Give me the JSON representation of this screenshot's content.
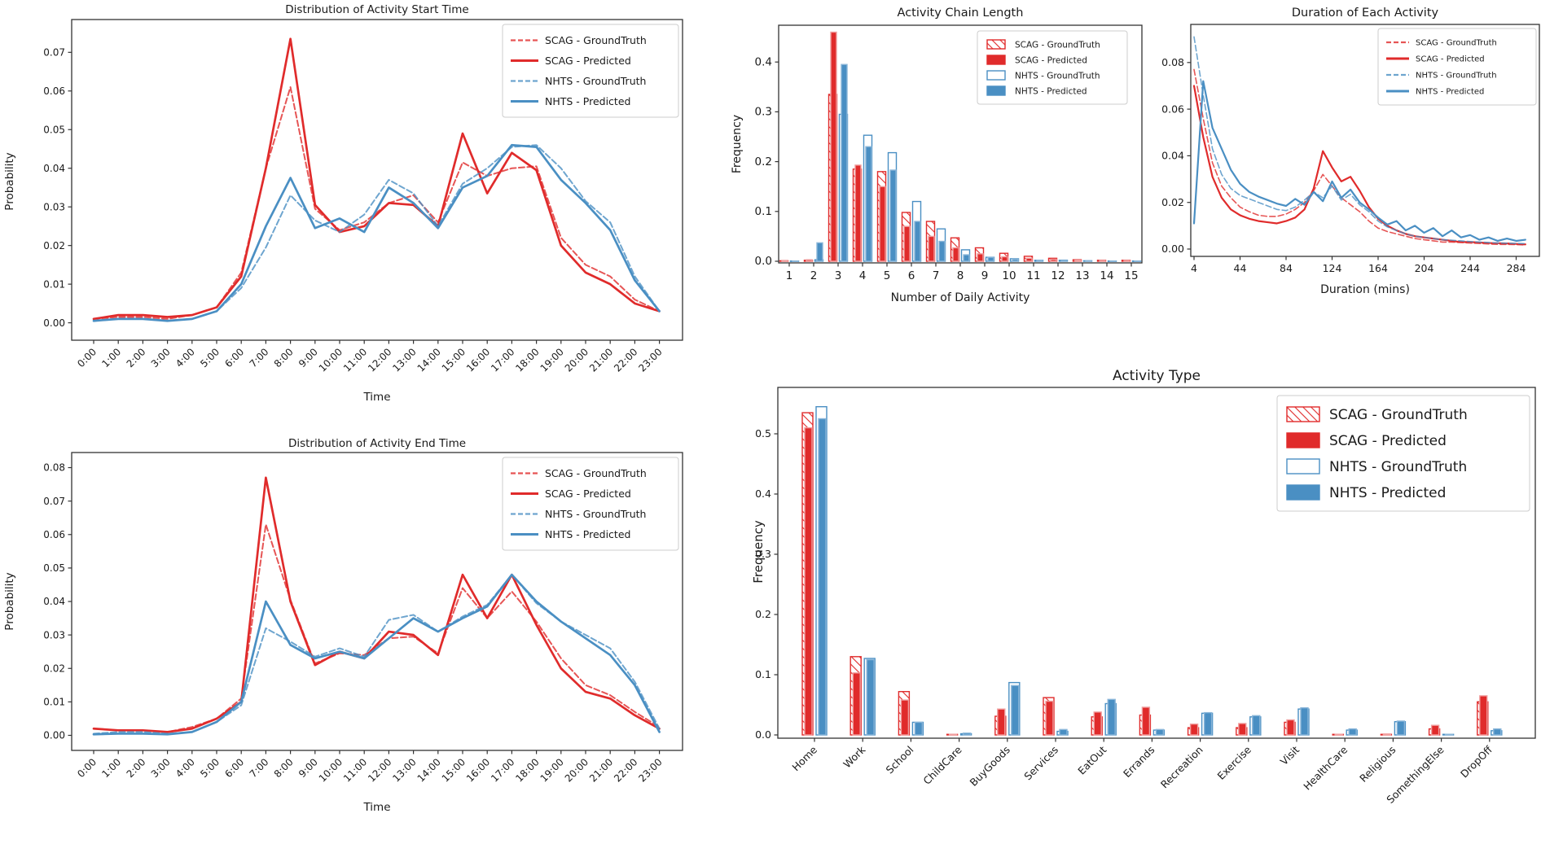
{
  "colors": {
    "red": "#e02b2b",
    "blue": "#4a8fc3",
    "bar_red_edge": "#f0a0a0",
    "bar_blue_edge": "#8ab6d9",
    "text": "#1a1a1a",
    "spine": "#333333"
  },
  "chart_data": [
    {
      "id": "activity_start_time",
      "type": "line",
      "title": "Distribution of Activity Start Time",
      "xlabel": "Time",
      "ylabel": "Probability",
      "legend_position": "upper right",
      "grid": false,
      "x_tick_labels": [
        "0:00",
        "1:00",
        "2:00",
        "3:00",
        "4:00",
        "5:00",
        "6:00",
        "7:00",
        "8:00",
        "9:00",
        "10:00",
        "11:00",
        "12:00",
        "13:00",
        "14:00",
        "15:00",
        "16:00",
        "17:00",
        "18:00",
        "19:00",
        "20:00",
        "21:00",
        "22:00",
        "23:00"
      ],
      "y_tick_values": [
        0,
        0.01,
        0.02,
        0.03,
        0.04,
        0.05,
        0.06,
        0.07
      ],
      "y_tick_labels": [
        "0.00",
        "0.01",
        "0.02",
        "0.03",
        "0.04",
        "0.05",
        "0.06",
        "0.07"
      ],
      "ylim": [
        -0.0045,
        0.0785
      ],
      "series": [
        {
          "name": "SCAG - GroundTruth",
          "color": "red",
          "style": "dashed",
          "values": [
            0.001,
            0.0015,
            0.0015,
            0.001,
            0.002,
            0.004,
            0.013,
            0.04,
            0.061,
            0.0295,
            0.024,
            0.026,
            0.031,
            0.033,
            0.026,
            0.0415,
            0.038,
            0.04,
            0.0405,
            0.022,
            0.015,
            0.012,
            0.006,
            0.003
          ]
        },
        {
          "name": "SCAG - Predicted",
          "color": "red",
          "style": "solid",
          "values": [
            0.001,
            0.002,
            0.002,
            0.0015,
            0.002,
            0.004,
            0.012,
            0.04,
            0.0735,
            0.0305,
            0.0235,
            0.025,
            0.031,
            0.0305,
            0.025,
            0.049,
            0.0335,
            0.044,
            0.0395,
            0.02,
            0.013,
            0.01,
            0.005,
            0.003
          ]
        },
        {
          "name": "NHTS - GroundTruth",
          "color": "blue",
          "style": "dashed",
          "values": [
            0.0005,
            0.001,
            0.001,
            0.0005,
            0.001,
            0.003,
            0.009,
            0.0195,
            0.033,
            0.0265,
            0.0235,
            0.028,
            0.037,
            0.0335,
            0.025,
            0.036,
            0.04,
            0.0455,
            0.046,
            0.04,
            0.0315,
            0.026,
            0.012,
            0.003
          ]
        },
        {
          "name": "NHTS - Predicted",
          "color": "blue",
          "style": "solid",
          "values": [
            0.0005,
            0.001,
            0.001,
            0.0005,
            0.001,
            0.003,
            0.01,
            0.025,
            0.0375,
            0.0245,
            0.027,
            0.0235,
            0.035,
            0.031,
            0.0245,
            0.035,
            0.038,
            0.046,
            0.0455,
            0.037,
            0.031,
            0.024,
            0.011,
            0.003
          ]
        }
      ]
    },
    {
      "id": "activity_chain_length",
      "type": "bar",
      "title": "Activity Chain Length",
      "xlabel": "Number of Daily Activity",
      "ylabel": "Frequency",
      "legend_position": "upper right",
      "grid": false,
      "categories": [
        "1",
        "2",
        "3",
        "4",
        "5",
        "6",
        "7",
        "8",
        "9",
        "10",
        "11",
        "12",
        "13",
        "14",
        "15"
      ],
      "y_tick_values": [
        0,
        0.1,
        0.2,
        0.3,
        0.4
      ],
      "y_tick_labels": [
        "0.0",
        "0.1",
        "0.2",
        "0.3",
        "0.4"
      ],
      "ylim": [
        0,
        0.475
      ],
      "series": [
        {
          "name": "SCAG - GroundTruth",
          "color": "red",
          "style": "hatched",
          "values": [
            0.001,
            0.002,
            0.335,
            0.185,
            0.18,
            0.098,
            0.08,
            0.047,
            0.027,
            0.016,
            0.01,
            0.006,
            0.003,
            0.002,
            0.002
          ]
        },
        {
          "name": "SCAG - Predicted",
          "color": "red",
          "style": "solid",
          "values": [
            0.0005,
            0.003,
            0.46,
            0.193,
            0.15,
            0.07,
            0.05,
            0.027,
            0.015,
            0.009,
            0.006,
            0.004,
            0.002,
            0.0015,
            0.0015
          ]
        },
        {
          "name": "NHTS - GroundTruth",
          "color": "blue",
          "style": "outline",
          "values": [
            0.0005,
            0.003,
            0.295,
            0.253,
            0.218,
            0.12,
            0.065,
            0.023,
            0.008,
            0.005,
            0.002,
            0.002,
            0.001,
            0.0005,
            0.0005
          ]
        },
        {
          "name": "NHTS - Predicted",
          "color": "blue",
          "style": "solid",
          "values": [
            0.0005,
            0.037,
            0.395,
            0.23,
            0.183,
            0.08,
            0.04,
            0.013,
            0.008,
            0.004,
            0.002,
            0.001,
            0.001,
            0.0005,
            0.0005
          ]
        }
      ]
    },
    {
      "id": "activity_duration",
      "type": "line",
      "title": "Duration of Each Activity",
      "xlabel": "Duration (mins)",
      "ylabel": "",
      "legend_position": "upper right",
      "grid": false,
      "x": [
        4,
        12,
        20,
        28,
        36,
        44,
        52,
        60,
        68,
        76,
        84,
        92,
        100,
        108,
        116,
        124,
        132,
        140,
        148,
        156,
        164,
        172,
        180,
        188,
        196,
        204,
        212,
        220,
        228,
        236,
        244,
        252,
        260,
        268,
        276,
        284,
        292
      ],
      "x_tick_values": [
        4,
        44,
        84,
        124,
        164,
        204,
        244,
        284
      ],
      "x_tick_labels": [
        "4",
        "44",
        "84",
        "124",
        "164",
        "204",
        "244",
        "284"
      ],
      "y_tick_values": [
        0,
        0.02,
        0.04,
        0.06,
        0.08
      ],
      "y_tick_labels": [
        "0.00",
        "0.02",
        "0.04",
        "0.06",
        "0.08"
      ],
      "ylim": [
        -0.003,
        0.096
      ],
      "series": [
        {
          "name": "SCAG - GroundTruth",
          "color": "red",
          "style": "dashed",
          "values": [
            0.077,
            0.056,
            0.037,
            0.027,
            0.022,
            0.018,
            0.016,
            0.0145,
            0.014,
            0.014,
            0.015,
            0.017,
            0.02,
            0.025,
            0.032,
            0.027,
            0.022,
            0.019,
            0.016,
            0.012,
            0.009,
            0.0075,
            0.0065,
            0.0055,
            0.0045,
            0.004,
            0.0035,
            0.003,
            0.003,
            0.0028,
            0.0026,
            0.0024,
            0.0022,
            0.002,
            0.002,
            0.0019,
            0.0018
          ]
        },
        {
          "name": "SCAG - Predicted",
          "color": "red",
          "style": "solid",
          "values": [
            0.07,
            0.048,
            0.031,
            0.022,
            0.017,
            0.0145,
            0.013,
            0.012,
            0.0115,
            0.011,
            0.012,
            0.0135,
            0.017,
            0.026,
            0.042,
            0.035,
            0.029,
            0.031,
            0.025,
            0.018,
            0.013,
            0.01,
            0.008,
            0.0065,
            0.0055,
            0.005,
            0.0045,
            0.004,
            0.0035,
            0.003,
            0.003,
            0.0028,
            0.0026,
            0.0025,
            0.0024,
            0.0022,
            0.002
          ]
        },
        {
          "name": "NHTS - GroundTruth",
          "color": "blue",
          "style": "dashed",
          "values": [
            0.091,
            0.066,
            0.043,
            0.032,
            0.026,
            0.023,
            0.0215,
            0.02,
            0.0185,
            0.017,
            0.0165,
            0.018,
            0.021,
            0.0245,
            0.022,
            0.027,
            0.021,
            0.0235,
            0.019,
            0.016,
            0.012,
            0.0095,
            0.008,
            0.0065,
            0.0055,
            0.005,
            0.0045,
            0.004,
            0.0038,
            0.0035,
            0.0032,
            0.003,
            0.0028,
            0.0026,
            0.0025,
            0.0024,
            0.0023
          ]
        },
        {
          "name": "NHTS - Predicted",
          "color": "blue",
          "style": "solid",
          "values": [
            0.011,
            0.072,
            0.052,
            0.043,
            0.034,
            0.028,
            0.0245,
            0.0225,
            0.021,
            0.0195,
            0.0185,
            0.0215,
            0.019,
            0.0245,
            0.0205,
            0.029,
            0.022,
            0.0255,
            0.02,
            0.017,
            0.0135,
            0.0105,
            0.012,
            0.008,
            0.01,
            0.007,
            0.009,
            0.0055,
            0.008,
            0.005,
            0.006,
            0.004,
            0.005,
            0.0035,
            0.0045,
            0.0035,
            0.004
          ]
        }
      ]
    },
    {
      "id": "activity_end_time",
      "type": "line",
      "title": "Distribution of Activity End Time",
      "xlabel": "Time",
      "ylabel": "Probability",
      "legend_position": "upper right",
      "grid": false,
      "x_tick_labels": [
        "0:00",
        "1:00",
        "2:00",
        "3:00",
        "4:00",
        "5:00",
        "6:00",
        "7:00",
        "8:00",
        "9:00",
        "10:00",
        "11:00",
        "12:00",
        "13:00",
        "14:00",
        "15:00",
        "16:00",
        "17:00",
        "18:00",
        "19:00",
        "20:00",
        "21:00",
        "22:00",
        "23:00"
      ],
      "y_tick_values": [
        0,
        0.01,
        0.02,
        0.03,
        0.04,
        0.05,
        0.06,
        0.07,
        0.08
      ],
      "y_tick_labels": [
        "0.00",
        "0.01",
        "0.02",
        "0.03",
        "0.04",
        "0.05",
        "0.06",
        "0.07",
        "0.08"
      ],
      "ylim": [
        -0.0045,
        0.0845
      ],
      "series": [
        {
          "name": "SCAG - GroundTruth",
          "color": "red",
          "style": "dashed",
          "values": [
            0.002,
            0.0015,
            0.0015,
            0.001,
            0.0025,
            0.005,
            0.011,
            0.063,
            0.0405,
            0.0215,
            0.0245,
            0.024,
            0.029,
            0.0295,
            0.0245,
            0.044,
            0.035,
            0.043,
            0.034,
            0.023,
            0.015,
            0.012,
            0.007,
            0.0025
          ]
        },
        {
          "name": "SCAG - Predicted",
          "color": "red",
          "style": "solid",
          "values": [
            0.002,
            0.0015,
            0.0015,
            0.001,
            0.002,
            0.005,
            0.01,
            0.077,
            0.04,
            0.021,
            0.025,
            0.023,
            0.031,
            0.03,
            0.024,
            0.048,
            0.035,
            0.048,
            0.033,
            0.02,
            0.013,
            0.011,
            0.006,
            0.002
          ]
        },
        {
          "name": "NHTS - GroundTruth",
          "color": "blue",
          "style": "dashed",
          "values": [
            0.0005,
            0.001,
            0.001,
            0.0005,
            0.001,
            0.004,
            0.009,
            0.032,
            0.028,
            0.0235,
            0.026,
            0.0235,
            0.0345,
            0.036,
            0.031,
            0.0355,
            0.039,
            0.048,
            0.0395,
            0.034,
            0.03,
            0.026,
            0.016,
            0.002
          ]
        },
        {
          "name": "NHTS - Predicted",
          "color": "blue",
          "style": "solid",
          "values": [
            0.0003,
            0.0005,
            0.0005,
            0.0003,
            0.001,
            0.004,
            0.01,
            0.04,
            0.027,
            0.023,
            0.025,
            0.023,
            0.029,
            0.035,
            0.031,
            0.035,
            0.0385,
            0.048,
            0.04,
            0.034,
            0.029,
            0.024,
            0.015,
            0.001
          ]
        }
      ]
    },
    {
      "id": "activity_type",
      "type": "bar",
      "title": "Activity Type",
      "xlabel": "",
      "ylabel": "Frequency",
      "legend_position": "upper right",
      "grid": false,
      "categories": [
        "Home",
        "Work",
        "School",
        "ChildCare",
        "BuyGoods",
        "Services",
        "EatOut",
        "Errands",
        "Recreation",
        "Exercise",
        "Visit",
        "HealthCare",
        "Religious",
        "SomethingElse",
        "DropOff"
      ],
      "y_tick_values": [
        0,
        0.1,
        0.2,
        0.3,
        0.4,
        0.5
      ],
      "y_tick_labels": [
        "0.0",
        "0.1",
        "0.2",
        "0.3",
        "0.4",
        "0.5"
      ],
      "ylim": [
        0,
        0.577
      ],
      "series": [
        {
          "name": "SCAG - GroundTruth",
          "color": "red",
          "style": "hatched",
          "values": [
            0.535,
            0.13,
            0.072,
            0.001,
            0.031,
            0.062,
            0.03,
            0.033,
            0.012,
            0.012,
            0.021,
            0.001,
            0.001,
            0.01,
            0.055
          ]
        },
        {
          "name": "SCAG - Predicted",
          "color": "red",
          "style": "solid",
          "values": [
            0.51,
            0.103,
            0.058,
            0.001,
            0.043,
            0.056,
            0.038,
            0.046,
            0.018,
            0.019,
            0.025,
            0.001,
            0.0005,
            0.016,
            0.065
          ]
        },
        {
          "name": "NHTS - GroundTruth",
          "color": "blue",
          "style": "outline",
          "values": [
            0.545,
            0.127,
            0.021,
            0.002,
            0.087,
            0.006,
            0.052,
            0.008,
            0.036,
            0.03,
            0.043,
            0.008,
            0.022,
            0.001,
            0.007
          ]
        },
        {
          "name": "NHTS - Predicted",
          "color": "blue",
          "style": "solid",
          "values": [
            0.525,
            0.125,
            0.021,
            0.003,
            0.082,
            0.009,
            0.059,
            0.009,
            0.037,
            0.032,
            0.045,
            0.01,
            0.023,
            0.001,
            0.01
          ]
        }
      ]
    }
  ]
}
